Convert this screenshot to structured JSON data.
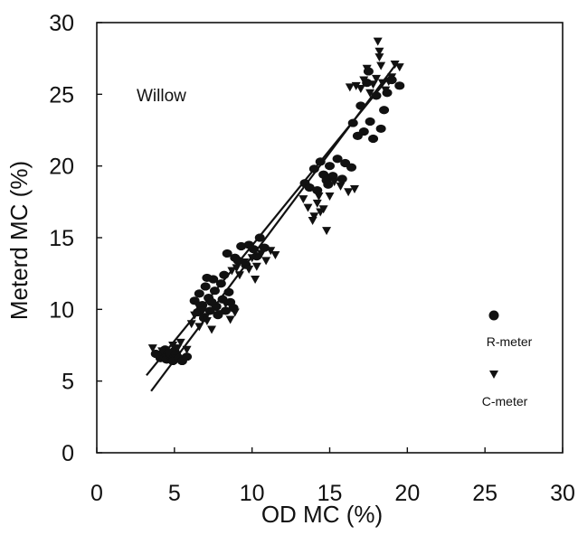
{
  "chart_data": {
    "type": "scatter",
    "title": "",
    "xlabel": "OD MC (%)",
    "ylabel": "Meterd MC (%)",
    "xlim": [
      0,
      30
    ],
    "ylim": [
      0,
      30
    ],
    "xticks": [
      "0",
      "5",
      "10",
      "15",
      "20",
      "25",
      "30"
    ],
    "yticks": [
      "0",
      "5",
      "10",
      "15",
      "20",
      "25",
      "30"
    ],
    "annotation": "Willow",
    "grid": false,
    "legend_position": "right",
    "series": [
      {
        "name": "R-meter",
        "marker": "circle",
        "color": "#111111",
        "points": [
          [
            3.8,
            6.9
          ],
          [
            4.1,
            6.6
          ],
          [
            4.3,
            7.0
          ],
          [
            4.5,
            6.5
          ],
          [
            4.7,
            6.8
          ],
          [
            4.9,
            6.4
          ],
          [
            5.1,
            6.9
          ],
          [
            5.3,
            6.6
          ],
          [
            5.5,
            6.4
          ],
          [
            5.8,
            6.7
          ],
          [
            4.4,
            7.2
          ],
          [
            5.0,
            7.1
          ],
          [
            6.3,
            10.6
          ],
          [
            6.5,
            9.8
          ],
          [
            6.6,
            11.1
          ],
          [
            6.8,
            10.3
          ],
          [
            6.9,
            9.4
          ],
          [
            7.0,
            11.6
          ],
          [
            7.2,
            10.8
          ],
          [
            7.3,
            9.9
          ],
          [
            7.5,
            12.1
          ],
          [
            7.6,
            11.3
          ],
          [
            7.7,
            10.2
          ],
          [
            7.8,
            9.6
          ],
          [
            8.0,
            11.8
          ],
          [
            8.1,
            10.7
          ],
          [
            8.2,
            12.4
          ],
          [
            8.3,
            9.9
          ],
          [
            8.5,
            11.2
          ],
          [
            8.6,
            10.5
          ],
          [
            8.8,
            10.1
          ],
          [
            7.1,
            12.2
          ],
          [
            6.7,
            10.0
          ],
          [
            7.4,
            10.5
          ],
          [
            8.4,
            13.9
          ],
          [
            8.9,
            13.6
          ],
          [
            9.3,
            14.4
          ],
          [
            9.6,
            13.1
          ],
          [
            9.8,
            14.5
          ],
          [
            10.1,
            14.2
          ],
          [
            10.3,
            13.7
          ],
          [
            10.5,
            15.0
          ],
          [
            10.8,
            14.3
          ],
          [
            9.1,
            13.4
          ],
          [
            13.4,
            18.8
          ],
          [
            13.7,
            18.5
          ],
          [
            14.0,
            19.8
          ],
          [
            14.2,
            18.3
          ],
          [
            14.4,
            20.3
          ],
          [
            14.6,
            19.4
          ],
          [
            14.8,
            19.0
          ],
          [
            15.0,
            20.0
          ],
          [
            15.2,
            19.3
          ],
          [
            15.5,
            20.5
          ],
          [
            15.8,
            19.1
          ],
          [
            16.0,
            20.2
          ],
          [
            16.4,
            19.9
          ],
          [
            14.9,
            18.7
          ],
          [
            16.5,
            23.0
          ],
          [
            16.8,
            22.1
          ],
          [
            17.0,
            24.2
          ],
          [
            17.2,
            22.4
          ],
          [
            17.4,
            25.8
          ],
          [
            17.6,
            23.1
          ],
          [
            17.8,
            21.9
          ],
          [
            18.0,
            24.9
          ],
          [
            18.3,
            22.6
          ],
          [
            18.5,
            23.9
          ],
          [
            18.7,
            25.1
          ],
          [
            19.0,
            26.0
          ],
          [
            19.5,
            25.6
          ],
          [
            17.5,
            26.6
          ]
        ]
      },
      {
        "name": "C-meter",
        "marker": "triangle-down",
        "color": "#111111",
        "points": [
          [
            3.6,
            7.3
          ],
          [
            3.9,
            6.7
          ],
          [
            4.2,
            7.1
          ],
          [
            4.6,
            6.9
          ],
          [
            4.9,
            7.5
          ],
          [
            5.2,
            7.3
          ],
          [
            5.4,
            7.7
          ],
          [
            5.8,
            7.2
          ],
          [
            6.1,
            9.0
          ],
          [
            6.3,
            9.6
          ],
          [
            6.6,
            8.8
          ],
          [
            6.8,
            9.9
          ],
          [
            7.1,
            9.2
          ],
          [
            7.4,
            8.6
          ],
          [
            7.7,
            10.1
          ],
          [
            8.0,
            9.7
          ],
          [
            8.3,
            10.4
          ],
          [
            8.6,
            9.3
          ],
          [
            8.9,
            9.8
          ],
          [
            6.5,
            10.3
          ],
          [
            7.0,
            9.5
          ],
          [
            8.7,
            12.7
          ],
          [
            9.0,
            12.9
          ],
          [
            9.2,
            12.4
          ],
          [
            9.5,
            13.3
          ],
          [
            9.8,
            12.8
          ],
          [
            10.0,
            13.6
          ],
          [
            10.3,
            13.0
          ],
          [
            10.6,
            13.9
          ],
          [
            10.9,
            13.4
          ],
          [
            11.2,
            14.1
          ],
          [
            11.5,
            13.8
          ],
          [
            10.2,
            12.1
          ],
          [
            13.3,
            17.7
          ],
          [
            13.6,
            17.1
          ],
          [
            13.9,
            16.2
          ],
          [
            14.0,
            16.5
          ],
          [
            14.2,
            17.4
          ],
          [
            14.4,
            16.8
          ],
          [
            14.6,
            17.0
          ],
          [
            14.8,
            15.5
          ],
          [
            15.0,
            17.9
          ],
          [
            15.3,
            18.9
          ],
          [
            15.7,
            18.6
          ],
          [
            16.2,
            18.2
          ],
          [
            16.6,
            18.4
          ],
          [
            14.3,
            17.9
          ],
          [
            16.3,
            25.5
          ],
          [
            16.7,
            25.6
          ],
          [
            17.0,
            25.4
          ],
          [
            17.2,
            26.0
          ],
          [
            17.4,
            26.8
          ],
          [
            17.6,
            25.1
          ],
          [
            17.8,
            25.7
          ],
          [
            18.0,
            26.1
          ],
          [
            18.1,
            28.7
          ],
          [
            18.2,
            27.6
          ],
          [
            18.3,
            27.0
          ],
          [
            18.4,
            25.8
          ],
          [
            18.6,
            25.3
          ],
          [
            18.8,
            25.9
          ],
          [
            19.0,
            26.2
          ],
          [
            19.2,
            27.1
          ],
          [
            19.5,
            26.9
          ],
          [
            18.2,
            28.0
          ]
        ]
      }
    ],
    "fit_lines": [
      {
        "series": "R-meter",
        "x": [
          3.5,
          19.2
        ],
        "y": [
          4.3,
          27.0
        ]
      },
      {
        "series": "C-meter",
        "x": [
          3.2,
          18.9
        ],
        "y": [
          5.4,
          26.3
        ]
      }
    ]
  }
}
